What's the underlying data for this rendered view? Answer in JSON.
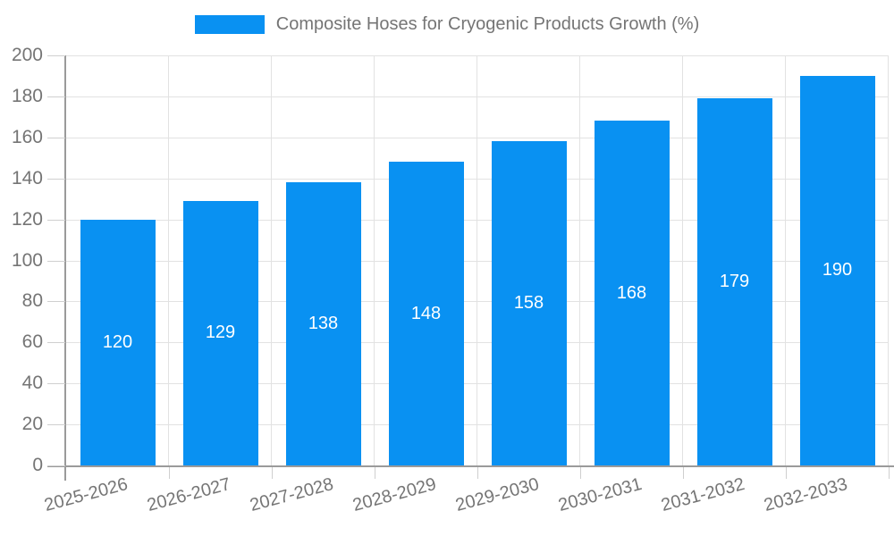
{
  "chart_data": {
    "type": "bar",
    "title": "Composite Hoses for Cryogenic Products Growth (%)",
    "categories": [
      "2025-2026",
      "2026-2027",
      "2027-2028",
      "2028-2029",
      "2029-2030",
      "2030-2031",
      "2031-2032",
      "2032-2033"
    ],
    "values": [
      120,
      129,
      138,
      148,
      158,
      168,
      179,
      190
    ],
    "xlabel": "",
    "ylabel": "",
    "ylim": [
      0,
      200
    ],
    "y_ticks": [
      0,
      20,
      40,
      60,
      80,
      100,
      120,
      140,
      160,
      180,
      200
    ],
    "grid": "horizontal and vertical light gray",
    "legend_position": "top-center",
    "bar_color": "#0991f2",
    "value_label_color": "#ffffff",
    "axis_text_color": "#757575",
    "gridline_color": "#e2e2e2",
    "axis_line_color": "#9a9a9a"
  }
}
